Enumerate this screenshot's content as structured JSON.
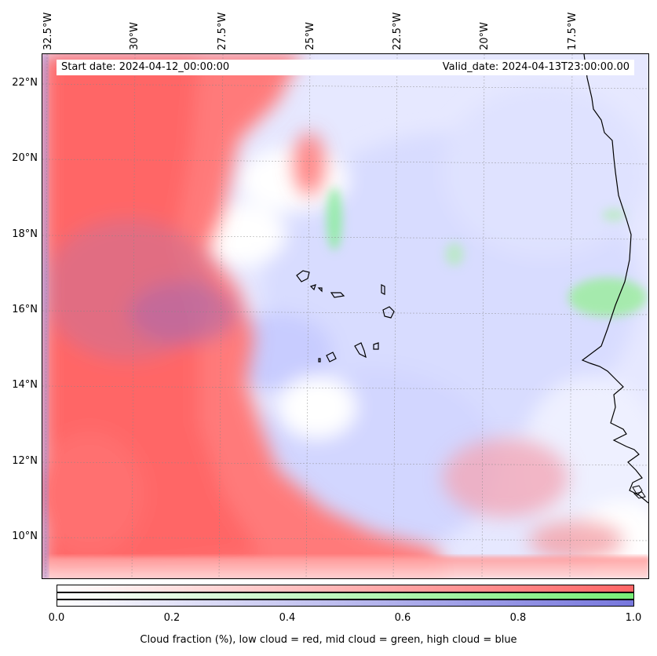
{
  "map": {
    "start_date": "Start date: 2024-04-12_00:00:00",
    "valid_date": "Valid_date: 2024-04-13T23:00:00.00",
    "lon_labels": [
      "32.5°W",
      "30°W",
      "27.5°W",
      "25°W",
      "22.5°W",
      "20°W",
      "17.5°W"
    ],
    "lat_labels": [
      "22°N",
      "20°N",
      "18°N",
      "16°N",
      "14°N",
      "12°N",
      "10°N"
    ]
  },
  "colorbar": {
    "ticks": [
      "0.0",
      "0.2",
      "0.4",
      "0.6",
      "0.8",
      "1.0"
    ],
    "label": "Cloud fraction (%), low cloud = red, mid cloud = green, high cloud = blue",
    "colors": {
      "low": "#ff6666",
      "mid": "#77ee77",
      "high": "#7777dd"
    }
  }
}
